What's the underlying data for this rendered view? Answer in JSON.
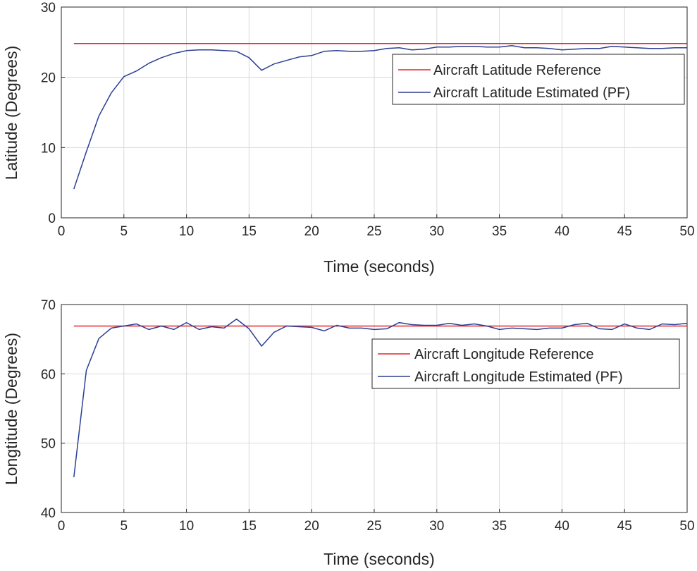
{
  "chart_data": [
    {
      "type": "line",
      "xlabel": "Time (seconds)",
      "ylabel": "Latitude (Degrees)",
      "xlim": [
        0,
        50
      ],
      "ylim": [
        0,
        30
      ],
      "xticks": [
        0,
        5,
        10,
        15,
        20,
        25,
        30,
        35,
        40,
        45,
        50
      ],
      "yticks": [
        0,
        10,
        20,
        30
      ],
      "grid": true,
      "legend_position": "right",
      "series": [
        {
          "name": "Aircraft Latitude Reference",
          "color": "#e8242b",
          "x": [
            1,
            50
          ],
          "values": [
            24.8,
            24.8
          ]
        },
        {
          "name": "Aircraft Latitude Estimated (PF)",
          "color": "#2b3f94",
          "x": [
            1,
            2,
            3,
            4,
            5,
            6,
            7,
            8,
            9,
            10,
            11,
            12,
            13,
            14,
            15,
            16,
            17,
            18,
            19,
            20,
            21,
            22,
            23,
            24,
            25,
            26,
            27,
            28,
            29,
            30,
            31,
            32,
            33,
            34,
            35,
            36,
            37,
            38,
            39,
            40,
            41,
            42,
            43,
            44,
            45,
            46,
            47,
            48,
            49,
            50
          ],
          "values": [
            4.1,
            9.4,
            14.5,
            17.8,
            20.1,
            20.9,
            22.0,
            22.8,
            23.4,
            23.8,
            23.9,
            23.9,
            23.8,
            23.7,
            22.8,
            21.0,
            21.9,
            22.4,
            22.9,
            23.1,
            23.7,
            23.8,
            23.7,
            23.7,
            23.8,
            24.1,
            24.2,
            23.9,
            24.0,
            24.3,
            24.3,
            24.4,
            24.4,
            24.3,
            24.3,
            24.5,
            24.2,
            24.2,
            24.1,
            23.9,
            24.0,
            24.1,
            24.1,
            24.4,
            24.3,
            24.2,
            24.1,
            24.1,
            24.2,
            24.2
          ]
        }
      ]
    },
    {
      "type": "line",
      "xlabel": "Time (seconds)",
      "ylabel": "Longtitude (Degrees)",
      "xlim": [
        0,
        50
      ],
      "ylim": [
        40,
        70
      ],
      "xticks": [
        0,
        5,
        10,
        15,
        20,
        25,
        30,
        35,
        40,
        45,
        50
      ],
      "yticks": [
        40,
        50,
        60,
        70
      ],
      "grid": true,
      "legend_position": "right",
      "series": [
        {
          "name": "Aircraft Longitude Reference",
          "color": "#e8242b",
          "x": [
            1,
            50
          ],
          "values": [
            66.9,
            66.9
          ]
        },
        {
          "name": "Aircraft Longitude Estimated (PF)",
          "color": "#2b3f94",
          "x": [
            1,
            2,
            3,
            4,
            5,
            6,
            7,
            8,
            9,
            10,
            11,
            12,
            13,
            14,
            15,
            16,
            17,
            18,
            19,
            20,
            21,
            22,
            23,
            24,
            25,
            26,
            27,
            28,
            29,
            30,
            31,
            32,
            33,
            34,
            35,
            36,
            37,
            38,
            39,
            40,
            41,
            42,
            43,
            44,
            45,
            46,
            47,
            48,
            49,
            50
          ],
          "values": [
            45.1,
            60.5,
            65.1,
            66.6,
            66.9,
            67.2,
            66.4,
            66.9,
            66.4,
            67.4,
            66.4,
            66.8,
            66.6,
            67.9,
            66.5,
            64.0,
            66.0,
            66.9,
            66.8,
            66.7,
            66.2,
            67.0,
            66.6,
            66.6,
            66.4,
            66.5,
            67.4,
            67.1,
            67.0,
            67.0,
            67.3,
            67.0,
            67.2,
            66.9,
            66.4,
            66.6,
            66.5,
            66.4,
            66.6,
            66.6,
            67.1,
            67.3,
            66.5,
            66.4,
            67.2,
            66.6,
            66.4,
            67.2,
            67.1,
            67.3
          ]
        }
      ]
    }
  ]
}
